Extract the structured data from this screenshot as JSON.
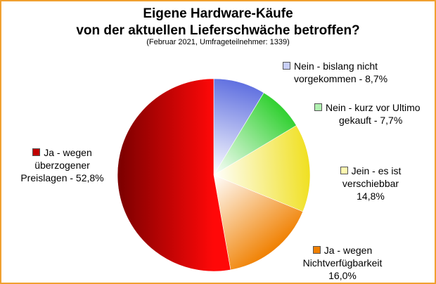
{
  "chart_data": {
    "type": "pie",
    "title_line1": "Eigene Hardware-Käufe",
    "title_line2": "von der aktuellen Lieferschwäche betroffen?",
    "subtitle": "(Februar 2021, Umfrageteilnehmer: 1339)",
    "slices": [
      {
        "label_line1": "Nein - bislang nicht",
        "label_line2": "vorgekommen - 8,7%",
        "label_line3": "",
        "value": 8.7,
        "color": "#6070e0"
      },
      {
        "label_line1": "Nein - kurz vor Ultimo",
        "label_line2": "gekauft - 7,7%",
        "label_line3": "",
        "value": 7.7,
        "color": "#30d030"
      },
      {
        "label_line1": "Jein - es ist",
        "label_line2": "verschiebbar",
        "label_line3": "14,8%",
        "value": 14.8,
        "color": "#f0e020"
      },
      {
        "label_line1": "Ja - wegen",
        "label_line2": "Nichtverfügbarkeit",
        "label_line3": "16,0%",
        "value": 16.0,
        "color": "#f08000"
      },
      {
        "label_line1": "Ja - wegen",
        "label_line2": "überzogener",
        "label_line3": "Preislagen - 52,8%",
        "value": 52.8,
        "color": "#d01010"
      }
    ]
  }
}
